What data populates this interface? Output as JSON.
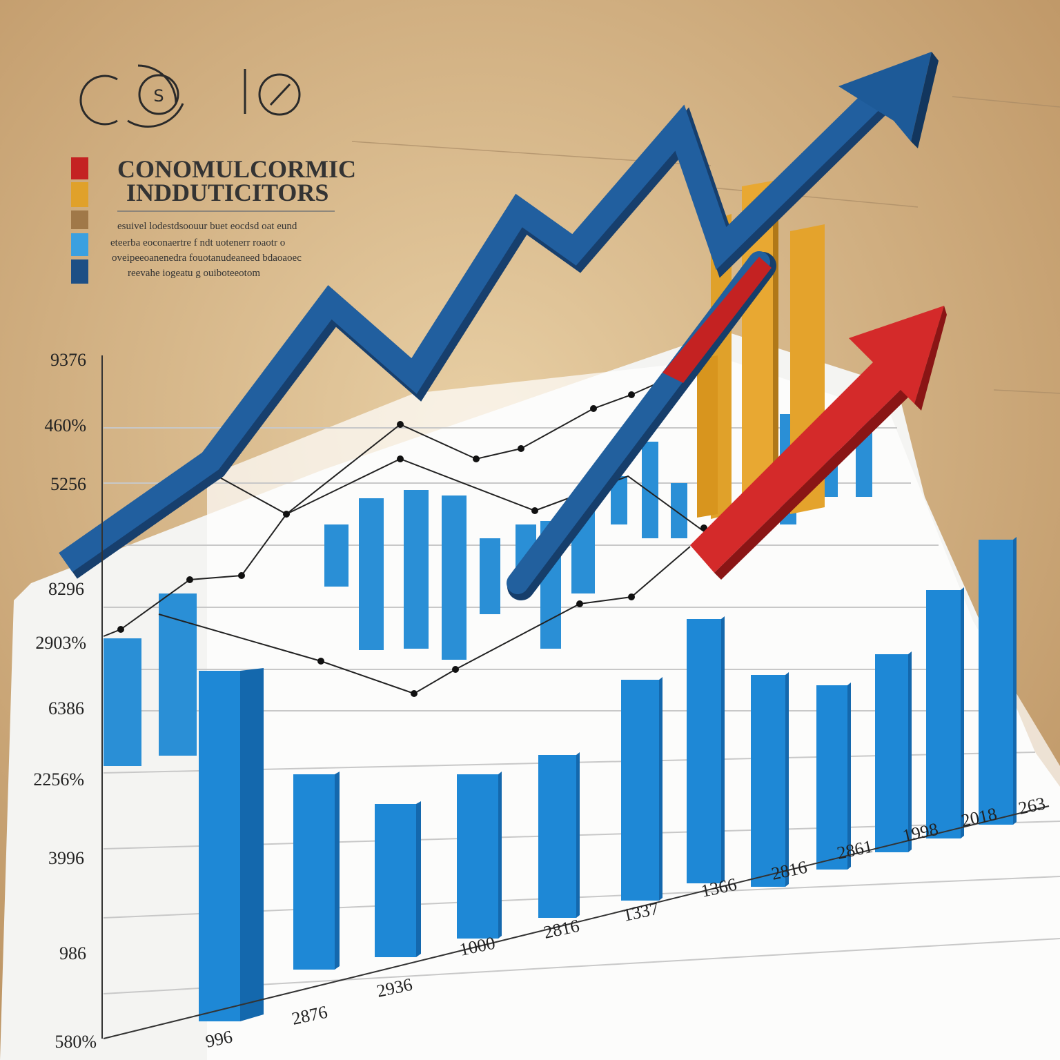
{
  "header": {
    "title": [
      "CONOMULCORMIC",
      "INDDUTICITORS"
    ],
    "description": [
      "esuivel lodestdsoouur buet eocdsd oat eund",
      "eteerba eoconaertre f ndt uotenerr roaotr o",
      "oveipeeoanenedra fouotanudeaneed bdaoaoec",
      "reevahe iogeatu g ouiboteeotom"
    ]
  },
  "y_labels": [
    "9376",
    "460%",
    "5256",
    "8296",
    "2903%",
    "6386",
    "2256%",
    "3996",
    "986",
    "580%"
  ],
  "x_labels": [
    "996",
    "2876",
    "2936",
    "1000",
    "2816",
    "1337",
    "1366",
    "2816",
    "2861",
    "1998",
    "2018",
    "263"
  ]
}
